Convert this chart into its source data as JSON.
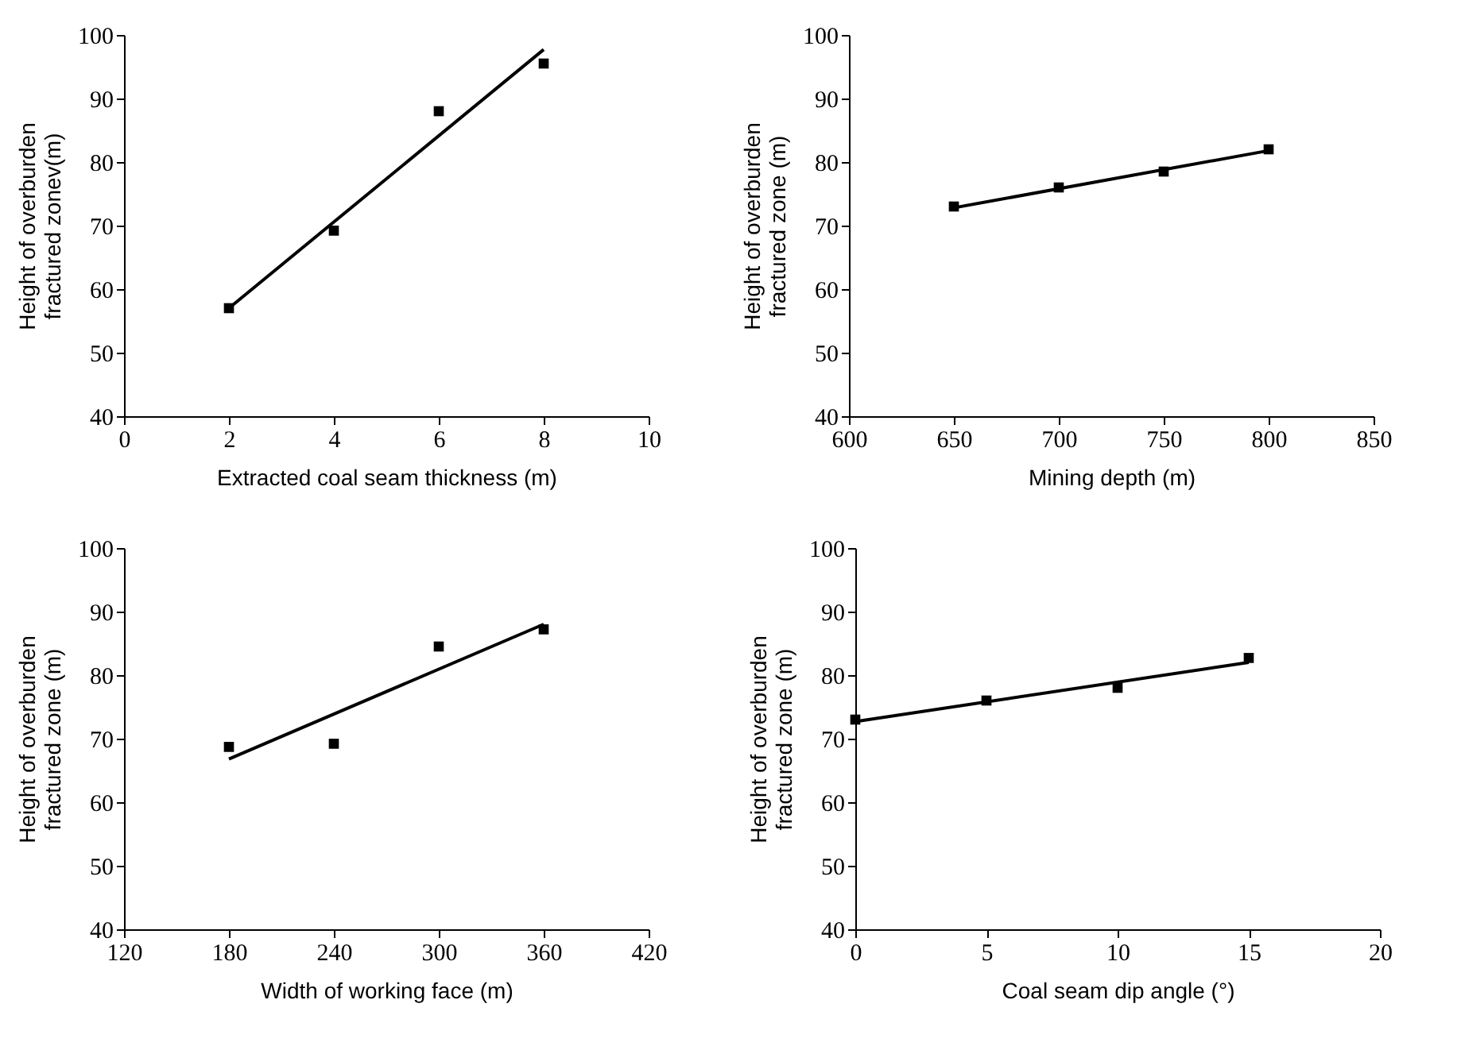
{
  "chart_data": [
    {
      "type": "scatter",
      "xlabel": "Extracted coal seam thickness (m)",
      "ylabel": "Height of overburden\nfractured zonev(m)",
      "xlim": [
        0,
        10
      ],
      "xticks": [
        0,
        2,
        4,
        6,
        8,
        10
      ],
      "ylim": [
        40,
        100
      ],
      "yticks": [
        40,
        50,
        60,
        70,
        80,
        90,
        100
      ],
      "grid": false,
      "series": [
        {
          "marker": "square",
          "color": "#000000",
          "x": [
            2,
            4,
            6,
            8
          ],
          "values": [
            57,
            69.2,
            88,
            95.5
          ]
        },
        {
          "type": "line",
          "marker": "none",
          "line_style": "solid",
          "color": "#000000",
          "x": [
            2,
            8
          ],
          "values": [
            57,
            97.7
          ]
        }
      ]
    },
    {
      "type": "scatter",
      "xlabel": "Mining depth (m)",
      "ylabel": "Height of overburden\nfractured zone (m)",
      "xlim": [
        600,
        850
      ],
      "xticks": [
        600,
        650,
        700,
        750,
        800,
        850
      ],
      "ylim": [
        40,
        100
      ],
      "yticks": [
        40,
        50,
        60,
        70,
        80,
        90,
        100
      ],
      "grid": false,
      "series": [
        {
          "marker": "square",
          "color": "#000000",
          "x": [
            650,
            700,
            750,
            800
          ],
          "values": [
            73,
            76,
            78.5,
            82
          ]
        },
        {
          "type": "line",
          "marker": "none",
          "line_style": "solid",
          "color": "#000000",
          "x": [
            650,
            800
          ],
          "values": [
            72.8,
            81.8
          ]
        }
      ]
    },
    {
      "type": "scatter",
      "xlabel": "Width of working face (m)",
      "ylabel": "Height of overburden\nfractured zone (m)",
      "xlim": [
        120,
        420
      ],
      "xticks": [
        120,
        180,
        240,
        300,
        360,
        420
      ],
      "ylim": [
        40,
        100
      ],
      "yticks": [
        40,
        50,
        60,
        70,
        80,
        90,
        100
      ],
      "grid": false,
      "series": [
        {
          "marker": "square",
          "color": "#000000",
          "x": [
            180,
            240,
            300,
            360
          ],
          "values": [
            68.7,
            69.2,
            84.5,
            87.2
          ]
        },
        {
          "type": "line",
          "marker": "none",
          "line_style": "solid",
          "color": "#000000",
          "x": [
            180,
            360
          ],
          "values": [
            66.8,
            88
          ]
        }
      ]
    },
    {
      "type": "scatter",
      "xlabel": "Coal seam dip angle (°)",
      "ylabel": "Height of overburden\nfractured zone (m)",
      "xlim": [
        0,
        20
      ],
      "xticks": [
        0,
        5,
        10,
        15,
        20
      ],
      "ylim": [
        40,
        100
      ],
      "yticks": [
        40,
        50,
        60,
        70,
        80,
        90,
        100
      ],
      "grid": false,
      "series": [
        {
          "marker": "square",
          "color": "#000000",
          "x": [
            0,
            5,
            10,
            15
          ],
          "values": [
            73,
            76,
            78,
            82.7
          ]
        },
        {
          "type": "line",
          "marker": "none",
          "line_style": "solid",
          "color": "#000000",
          "x": [
            0,
            15
          ],
          "values": [
            72.7,
            82
          ]
        }
      ]
    }
  ]
}
